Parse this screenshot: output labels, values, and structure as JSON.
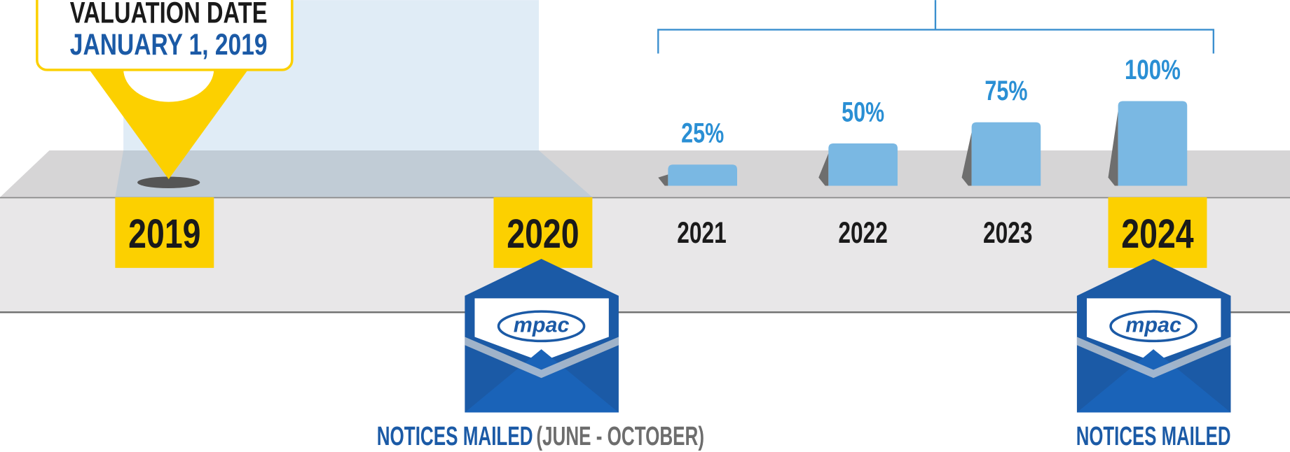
{
  "valuation": {
    "label": "VALUATION DATE",
    "date": "JANUARY 1, 2019"
  },
  "years": [
    "2019",
    "2020",
    "2021",
    "2022",
    "2023",
    "2024"
  ],
  "phase_in": {
    "values": [
      25,
      50,
      75,
      100
    ],
    "value_labels": [
      "25%",
      "50%",
      "75%",
      "100%"
    ]
  },
  "envelopes": [
    {
      "logo": "mpac"
    },
    {
      "logo": "mpac"
    }
  ],
  "notices": [
    {
      "text": "NOTICES MAILED",
      "detail": "(JUNE - OCTOBER)"
    },
    {
      "text": "NOTICES MAILED"
    }
  ]
}
